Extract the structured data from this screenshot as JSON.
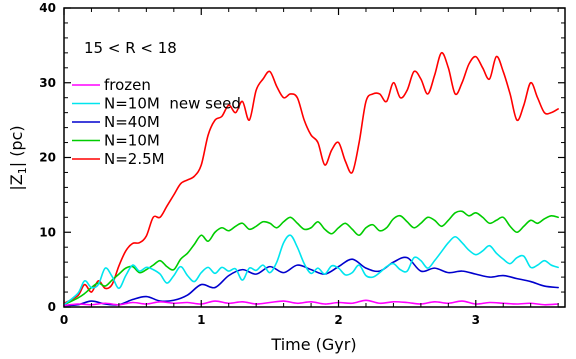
{
  "chart_data": {
    "type": "line",
    "title": "",
    "xlabel": "Time (Gyr)",
    "ylabel": "|Z1| (pc)",
    "ylabel_main": "|Z",
    "ylabel_sub": "1",
    "ylabel_tail": "| (pc)",
    "xlim": [
      0,
      3.65
    ],
    "ylim": [
      0,
      40
    ],
    "xticks": [
      0,
      1,
      2,
      3
    ],
    "yticks": [
      0,
      10,
      20,
      30,
      40
    ],
    "grid": false,
    "legend_position": "upper-left",
    "annotation": "15 < R < 18",
    "series": [
      {
        "name": "frozen",
        "color": "#ff00ff",
        "x": [
          0,
          0.1,
          0.2,
          0.3,
          0.4,
          0.5,
          0.6,
          0.7,
          0.8,
          0.9,
          1.0,
          1.1,
          1.2,
          1.3,
          1.4,
          1.5,
          1.6,
          1.7,
          1.8,
          1.9,
          2.0,
          2.1,
          2.2,
          2.3,
          2.4,
          2.5,
          2.6,
          2.7,
          2.8,
          2.9,
          3.0,
          3.1,
          3.2,
          3.3,
          3.4,
          3.5,
          3.6
        ],
        "y": [
          0.2,
          0.4,
          0.3,
          0.5,
          0.3,
          0.6,
          0.4,
          0.7,
          0.5,
          0.6,
          0.4,
          0.8,
          0.5,
          0.7,
          0.4,
          0.6,
          0.8,
          0.5,
          0.7,
          0.4,
          0.6,
          0.5,
          0.9,
          0.5,
          0.7,
          0.6,
          0.4,
          0.7,
          0.5,
          0.8,
          0.4,
          0.6,
          0.5,
          0.4,
          0.5,
          0.3,
          0.4
        ]
      },
      {
        "name": "N=10M  new seed",
        "color": "#00e5ee",
        "x": [
          0,
          0.1,
          0.15,
          0.2,
          0.25,
          0.3,
          0.35,
          0.4,
          0.45,
          0.5,
          0.55,
          0.6,
          0.65,
          0.7,
          0.75,
          0.8,
          0.85,
          0.9,
          0.95,
          1.0,
          1.05,
          1.1,
          1.15,
          1.2,
          1.25,
          1.3,
          1.35,
          1.4,
          1.45,
          1.5,
          1.55,
          1.6,
          1.65,
          1.7,
          1.75,
          1.8,
          1.85,
          1.9,
          1.95,
          2.0,
          2.05,
          2.1,
          2.15,
          2.2,
          2.25,
          2.3,
          2.35,
          2.4,
          2.45,
          2.5,
          2.55,
          2.6,
          2.65,
          2.7,
          2.75,
          2.8,
          2.85,
          2.9,
          2.95,
          3.0,
          3.05,
          3.1,
          3.15,
          3.2,
          3.25,
          3.3,
          3.35,
          3.4,
          3.45,
          3.5,
          3.55,
          3.6
        ],
        "y": [
          0.3,
          1.8,
          3.5,
          2.6,
          3.0,
          5.2,
          4.1,
          2.5,
          4.2,
          5.6,
          4.8,
          5.3,
          5.0,
          4.4,
          3.2,
          4.2,
          5.4,
          4.2,
          3.4,
          4.6,
          5.3,
          4.5,
          5.3,
          4.8,
          5.1,
          3.6,
          5.2,
          4.9,
          5.6,
          4.6,
          6.0,
          8.6,
          9.6,
          8.0,
          5.8,
          4.5,
          5.2,
          4.4,
          5.5,
          5.2,
          4.3,
          4.6,
          5.6,
          4.2,
          4.0,
          4.6,
          5.4,
          5.8,
          5.0,
          4.8,
          6.6,
          6.2,
          5.2,
          6.2,
          7.4,
          8.6,
          9.4,
          8.6,
          7.6,
          7.0,
          7.5,
          8.2,
          7.2,
          6.4,
          5.8,
          6.6,
          6.8,
          5.3,
          5.6,
          6.2,
          5.6,
          5.3
        ]
      },
      {
        "name": "N=40M",
        "color": "#0000cd",
        "x": [
          0,
          0.1,
          0.2,
          0.3,
          0.4,
          0.5,
          0.6,
          0.7,
          0.8,
          0.9,
          1.0,
          1.1,
          1.2,
          1.3,
          1.4,
          1.5,
          1.6,
          1.7,
          1.8,
          1.9,
          2.0,
          2.1,
          2.2,
          2.3,
          2.4,
          2.5,
          2.6,
          2.7,
          2.8,
          2.9,
          3.0,
          3.1,
          3.2,
          3.3,
          3.4,
          3.5,
          3.6
        ],
        "y": [
          0.2,
          0.3,
          0.8,
          0.4,
          0.3,
          1.0,
          1.4,
          0.8,
          0.9,
          1.6,
          3.0,
          2.6,
          4.2,
          5.0,
          4.4,
          5.4,
          4.6,
          5.6,
          5.0,
          4.4,
          5.4,
          6.4,
          5.2,
          4.8,
          6.0,
          6.6,
          4.8,
          5.2,
          4.6,
          4.8,
          4.4,
          4.0,
          4.2,
          3.8,
          3.4,
          2.8,
          2.6
        ]
      },
      {
        "name": "N=10M",
        "color": "#00cc00",
        "x": [
          0,
          0.1,
          0.15,
          0.2,
          0.25,
          0.3,
          0.35,
          0.4,
          0.45,
          0.5,
          0.55,
          0.6,
          0.65,
          0.7,
          0.75,
          0.8,
          0.85,
          0.9,
          0.95,
          1.0,
          1.05,
          1.1,
          1.15,
          1.2,
          1.25,
          1.3,
          1.35,
          1.4,
          1.45,
          1.5,
          1.55,
          1.6,
          1.65,
          1.7,
          1.75,
          1.8,
          1.85,
          1.9,
          1.95,
          2.0,
          2.05,
          2.1,
          2.15,
          2.2,
          2.25,
          2.3,
          2.35,
          2.4,
          2.45,
          2.5,
          2.55,
          2.6,
          2.65,
          2.7,
          2.75,
          2.8,
          2.85,
          2.9,
          2.95,
          3.0,
          3.05,
          3.1,
          3.15,
          3.2,
          3.25,
          3.3,
          3.35,
          3.4,
          3.45,
          3.5,
          3.55,
          3.6
        ],
        "y": [
          0.3,
          1.2,
          1.8,
          2.6,
          3.2,
          2.8,
          3.6,
          4.4,
          5.2,
          5.4,
          4.6,
          5.0,
          5.6,
          6.2,
          5.4,
          5.0,
          6.4,
          7.2,
          8.4,
          9.6,
          8.8,
          10.0,
          10.6,
          10.2,
          10.8,
          11.2,
          10.4,
          10.8,
          11.4,
          11.2,
          10.6,
          11.4,
          12.0,
          11.2,
          10.4,
          10.6,
          11.4,
          10.4,
          9.8,
          10.6,
          11.2,
          10.4,
          9.6,
          10.6,
          11.0,
          10.2,
          10.6,
          11.8,
          12.2,
          11.4,
          10.6,
          11.2,
          12.0,
          11.6,
          10.8,
          11.6,
          12.6,
          12.8,
          12.2,
          12.6,
          12.0,
          11.2,
          11.6,
          12.0,
          10.8,
          10.0,
          10.8,
          11.6,
          11.2,
          11.8,
          12.2,
          12.0
        ]
      },
      {
        "name": "N=2.5M",
        "color": "#ff0000",
        "x": [
          0,
          0.1,
          0.15,
          0.2,
          0.25,
          0.3,
          0.35,
          0.4,
          0.45,
          0.5,
          0.55,
          0.6,
          0.65,
          0.7,
          0.75,
          0.8,
          0.85,
          0.9,
          0.95,
          1.0,
          1.05,
          1.1,
          1.15,
          1.2,
          1.25,
          1.3,
          1.35,
          1.4,
          1.45,
          1.5,
          1.55,
          1.6,
          1.65,
          1.7,
          1.75,
          1.8,
          1.85,
          1.9,
          1.95,
          2.0,
          2.05,
          2.1,
          2.15,
          2.2,
          2.25,
          2.3,
          2.35,
          2.4,
          2.45,
          2.5,
          2.55,
          2.6,
          2.65,
          2.7,
          2.75,
          2.8,
          2.85,
          2.9,
          2.95,
          3.0,
          3.05,
          3.1,
          3.15,
          3.2,
          3.25,
          3.3,
          3.35,
          3.4,
          3.45,
          3.5,
          3.55,
          3.6
        ],
        "y": [
          0.5,
          1.5,
          3.0,
          2.0,
          3.5,
          2.5,
          3.0,
          5.5,
          7.5,
          8.5,
          8.6,
          9.5,
          12.0,
          12.0,
          13.5,
          15.0,
          16.5,
          17.0,
          17.5,
          19.0,
          23.0,
          25.0,
          25.5,
          27.0,
          26.0,
          27.5,
          25.0,
          29.0,
          30.5,
          31.5,
          29.5,
          28.0,
          28.5,
          28.0,
          25.0,
          23.0,
          22.0,
          19.0,
          21.0,
          22.0,
          19.5,
          18.0,
          22.0,
          27.5,
          28.5,
          28.5,
          27.5,
          30.0,
          28.0,
          29.0,
          31.5,
          30.5,
          28.5,
          31.0,
          34.0,
          32.0,
          28.5,
          30.0,
          32.5,
          33.5,
          32.0,
          30.5,
          33.5,
          31.5,
          28.5,
          25.0,
          27.0,
          30.0,
          28.0,
          26.0,
          26.0,
          26.5
        ]
      }
    ]
  }
}
